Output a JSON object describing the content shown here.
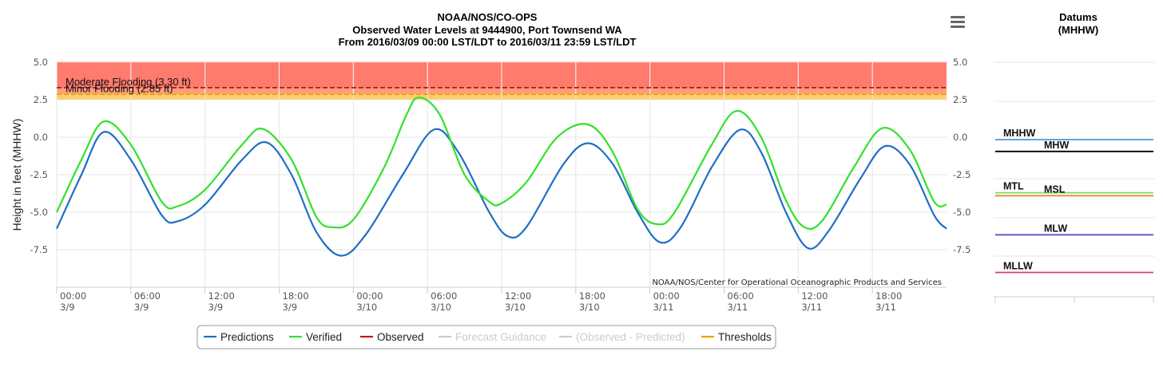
{
  "chart_data": {
    "type": "line",
    "title": [
      "NOAA/NOS/CO-OPS",
      "Observed Water Levels at 9444900, Port Townsend WA",
      "From 2016/03/09 00:00 LST/LDT to 2016/03/11 23:59 LST/LDT"
    ],
    "ylabel": "Height in feet (MHHW)",
    "ylim": [
      -10,
      5
    ],
    "xlim_hours": [
      0,
      72
    ],
    "y_ticks": [
      "5.0",
      "2.5",
      "0.0",
      "-2.5",
      "-5.0",
      "-7.5"
    ],
    "y_tick_values": [
      5,
      2.5,
      0,
      -2.5,
      -5,
      -7.5
    ],
    "x_ticks": [
      {
        "hour": 0,
        "time": "00:00",
        "date": "3/9"
      },
      {
        "hour": 6,
        "time": "06:00",
        "date": "3/9"
      },
      {
        "hour": 12,
        "time": "12:00",
        "date": "3/9"
      },
      {
        "hour": 18,
        "time": "18:00",
        "date": "3/9"
      },
      {
        "hour": 24,
        "time": "00:00",
        "date": "3/10"
      },
      {
        "hour": 30,
        "time": "06:00",
        "date": "3/10"
      },
      {
        "hour": 36,
        "time": "12:00",
        "date": "3/10"
      },
      {
        "hour": 42,
        "time": "18:00",
        "date": "3/10"
      },
      {
        "hour": 48,
        "time": "00:00",
        "date": "3/11"
      },
      {
        "hour": 54,
        "time": "06:00",
        "date": "3/11"
      },
      {
        "hour": 60,
        "time": "12:00",
        "date": "3/11"
      },
      {
        "hour": 66,
        "time": "18:00",
        "date": "3/11"
      }
    ],
    "thresholds": [
      {
        "name": "Moderate Flooding",
        "label": "Moderate Flooding (3.30 ft)",
        "value": 3.3,
        "color": "#8b0000"
      },
      {
        "name": "Minor Flooding",
        "label": "Minor Flooding (2.85 ft)",
        "value": 2.85,
        "color": "#e6a000"
      }
    ],
    "flood_band_color": "#ff7b6e",
    "minor_band_color": "#ffcf66",
    "series": [
      {
        "name": "Predictions",
        "color": "#1f6fc5",
        "points": [
          [
            0,
            -6.1
          ],
          [
            2,
            -2.5
          ],
          [
            3.8,
            0.35
          ],
          [
            6,
            -1.5
          ],
          [
            8.5,
            -5.2
          ],
          [
            9.8,
            -5.6
          ],
          [
            12,
            -4.5
          ],
          [
            15,
            -1.5
          ],
          [
            17,
            -0.35
          ],
          [
            19,
            -2.5
          ],
          [
            21,
            -6.3
          ],
          [
            23,
            -7.9
          ],
          [
            25,
            -6.5
          ],
          [
            28,
            -2.5
          ],
          [
            30.5,
            0.5
          ],
          [
            32.5,
            -1.0
          ],
          [
            35,
            -5.0
          ],
          [
            36.5,
            -6.6
          ],
          [
            38,
            -6.0
          ],
          [
            41,
            -1.8
          ],
          [
            43,
            -0.4
          ],
          [
            45,
            -1.8
          ],
          [
            47,
            -5.0
          ],
          [
            48.8,
            -7.0
          ],
          [
            50.5,
            -6.0
          ],
          [
            53,
            -2.0
          ],
          [
            55.3,
            0.5
          ],
          [
            57,
            -1.0
          ],
          [
            59,
            -5.0
          ],
          [
            60.8,
            -7.4
          ],
          [
            62.5,
            -6.2
          ],
          [
            65,
            -2.8
          ],
          [
            67,
            -0.6
          ],
          [
            69,
            -1.8
          ],
          [
            71,
            -5.2
          ],
          [
            72,
            -6.1
          ]
        ]
      },
      {
        "name": "Verified",
        "color": "#33e02d",
        "points": [
          [
            0,
            -5.0
          ],
          [
            2,
            -1.5
          ],
          [
            3.8,
            1.05
          ],
          [
            6,
            -0.5
          ],
          [
            8.5,
            -4.3
          ],
          [
            9.8,
            -4.6
          ],
          [
            12,
            -3.5
          ],
          [
            15,
            -0.5
          ],
          [
            16.7,
            0.55
          ],
          [
            19,
            -1.5
          ],
          [
            21,
            -5.3
          ],
          [
            22.3,
            -6.0
          ],
          [
            24,
            -5.5
          ],
          [
            26.5,
            -2.0
          ],
          [
            28.3,
            1.5
          ],
          [
            29.3,
            2.65
          ],
          [
            31,
            1.5
          ],
          [
            33,
            -2.5
          ],
          [
            35,
            -4.3
          ],
          [
            36,
            -4.4
          ],
          [
            38,
            -3.0
          ],
          [
            40.5,
            0.0
          ],
          [
            43,
            0.85
          ],
          [
            45,
            -1.0
          ],
          [
            47,
            -4.8
          ],
          [
            48.6,
            -5.8
          ],
          [
            50,
            -5.0
          ],
          [
            53,
            -0.5
          ],
          [
            55,
            1.75
          ],
          [
            57,
            0.0
          ],
          [
            59,
            -4.2
          ],
          [
            60.5,
            -6.0
          ],
          [
            62,
            -5.5
          ],
          [
            64.5,
            -2.0
          ],
          [
            66.8,
            0.6
          ],
          [
            69,
            -0.8
          ],
          [
            71,
            -4.3
          ],
          [
            72,
            -4.5
          ]
        ]
      },
      {
        "name": "Observed",
        "color": "#c4171d",
        "points": []
      },
      {
        "name": "Forecast Guidance",
        "color": "#cccccc",
        "points": []
      },
      {
        "name": "(Observed - Predicted)",
        "color": "#cccccc",
        "points": []
      },
      {
        "name": "Thresholds",
        "color": "#f0a000",
        "points": []
      }
    ],
    "credit": "NOAA/NOS/Center for Operational Oceanographic Products and Services",
    "legend": [
      {
        "name": "Predictions",
        "color": "#1f6fc5",
        "enabled": true
      },
      {
        "name": "Verified",
        "color": "#33e02d",
        "enabled": true
      },
      {
        "name": "Observed",
        "color": "#c4171d",
        "enabled": true
      },
      {
        "name": "Forecast Guidance",
        "color": "#cccccc",
        "enabled": false
      },
      {
        "name": "(Observed - Predicted)",
        "color": "#cccccc",
        "enabled": false
      },
      {
        "name": "Thresholds",
        "color": "#f0a000",
        "enabled": true
      }
    ]
  },
  "datums": {
    "title": [
      "Datums",
      "(MHHW)"
    ],
    "items": [
      {
        "name": "MHHW",
        "value": 0.0,
        "color": "#4f96d4"
      },
      {
        "name": "MHW",
        "value": -0.8,
        "color": "#000000"
      },
      {
        "name": "MTL",
        "value": -3.6,
        "color": "#7ed957"
      },
      {
        "name": "MSL",
        "value": -3.8,
        "color": "#e0883a"
      },
      {
        "name": "MLW",
        "value": -6.45,
        "color": "#5a50c8"
      },
      {
        "name": "MLLW",
        "value": -9.0,
        "color": "#d64068"
      }
    ]
  }
}
